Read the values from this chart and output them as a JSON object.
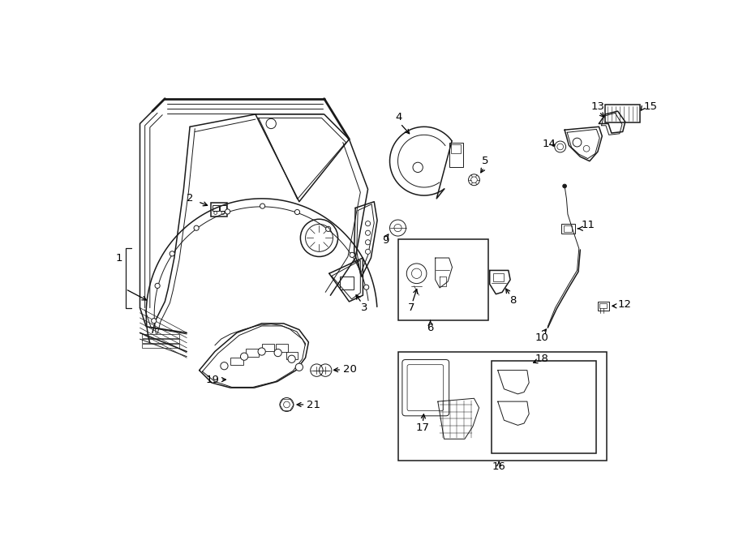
{
  "bg_color": "#ffffff",
  "line_color": "#1a1a1a",
  "fig_width": 9.0,
  "fig_height": 6.61,
  "dpi": 100,
  "label_fontsize": 9.5
}
